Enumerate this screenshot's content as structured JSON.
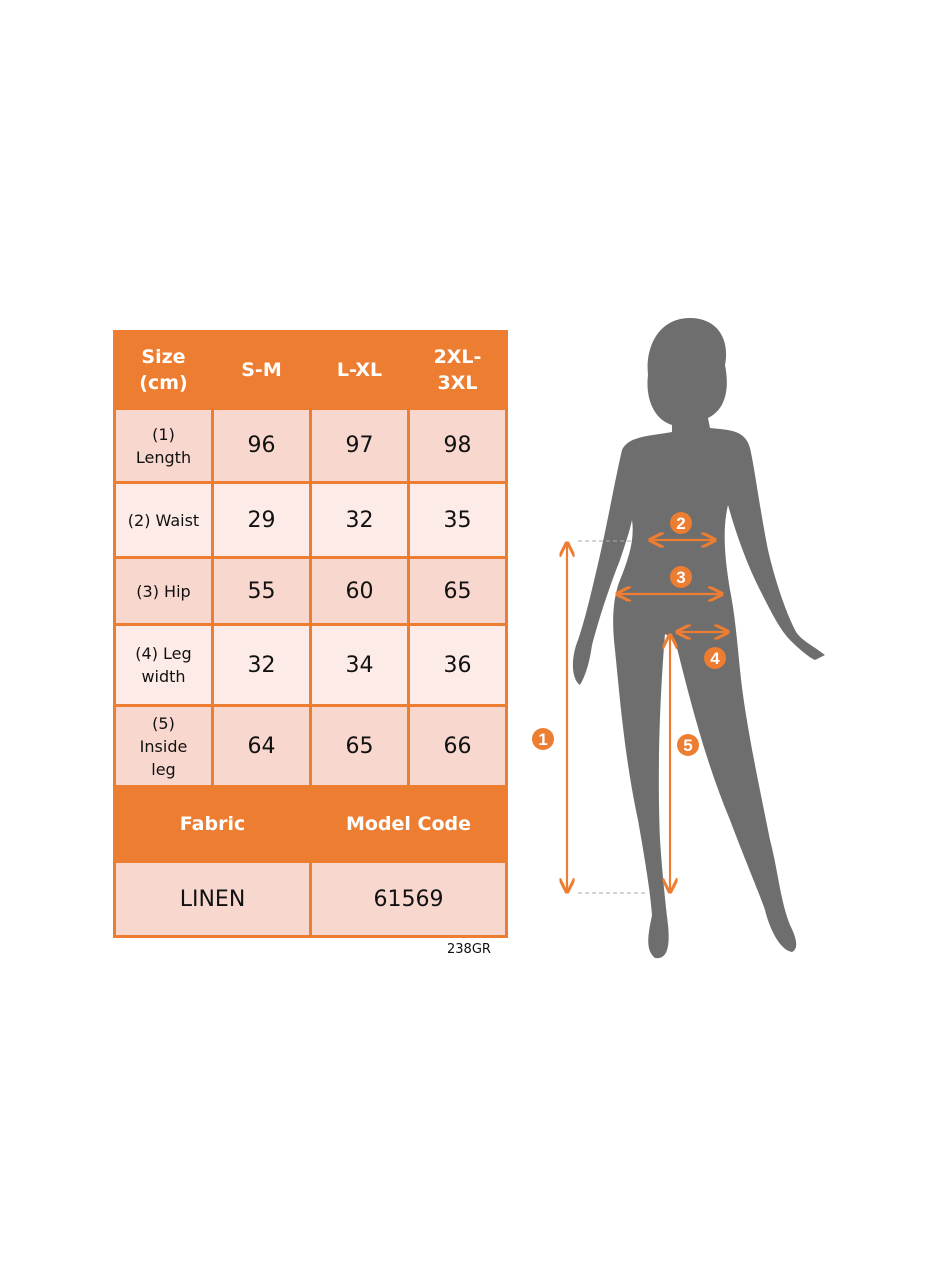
{
  "table": {
    "header": [
      "Size (cm)",
      "S-M",
      "L-XL",
      "2XL-3XL"
    ],
    "rows": [
      {
        "label": "(1) Length",
        "values": [
          "96",
          "97",
          "98"
        ]
      },
      {
        "label": "(2) Waist",
        "values": [
          "29",
          "32",
          "35"
        ]
      },
      {
        "label": "(3) Hip",
        "values": [
          "55",
          "60",
          "65"
        ]
      },
      {
        "label": "(4) Leg width",
        "values": [
          "32",
          "34",
          "36"
        ]
      },
      {
        "label": "(5) Inside leg",
        "values": [
          "64",
          "65",
          "66"
        ]
      }
    ],
    "footer_header": [
      "Fabric",
      "Model Code"
    ],
    "footer_values": [
      "LINEN",
      "61569"
    ]
  },
  "code": "238GR",
  "markers": [
    "1",
    "2",
    "3",
    "4",
    "5"
  ],
  "colors": {
    "accent": "#ED7D31",
    "cell_dark": "#F8D7CE",
    "cell_light": "#FCEBE6",
    "silhouette": "#6E6E6E"
  }
}
